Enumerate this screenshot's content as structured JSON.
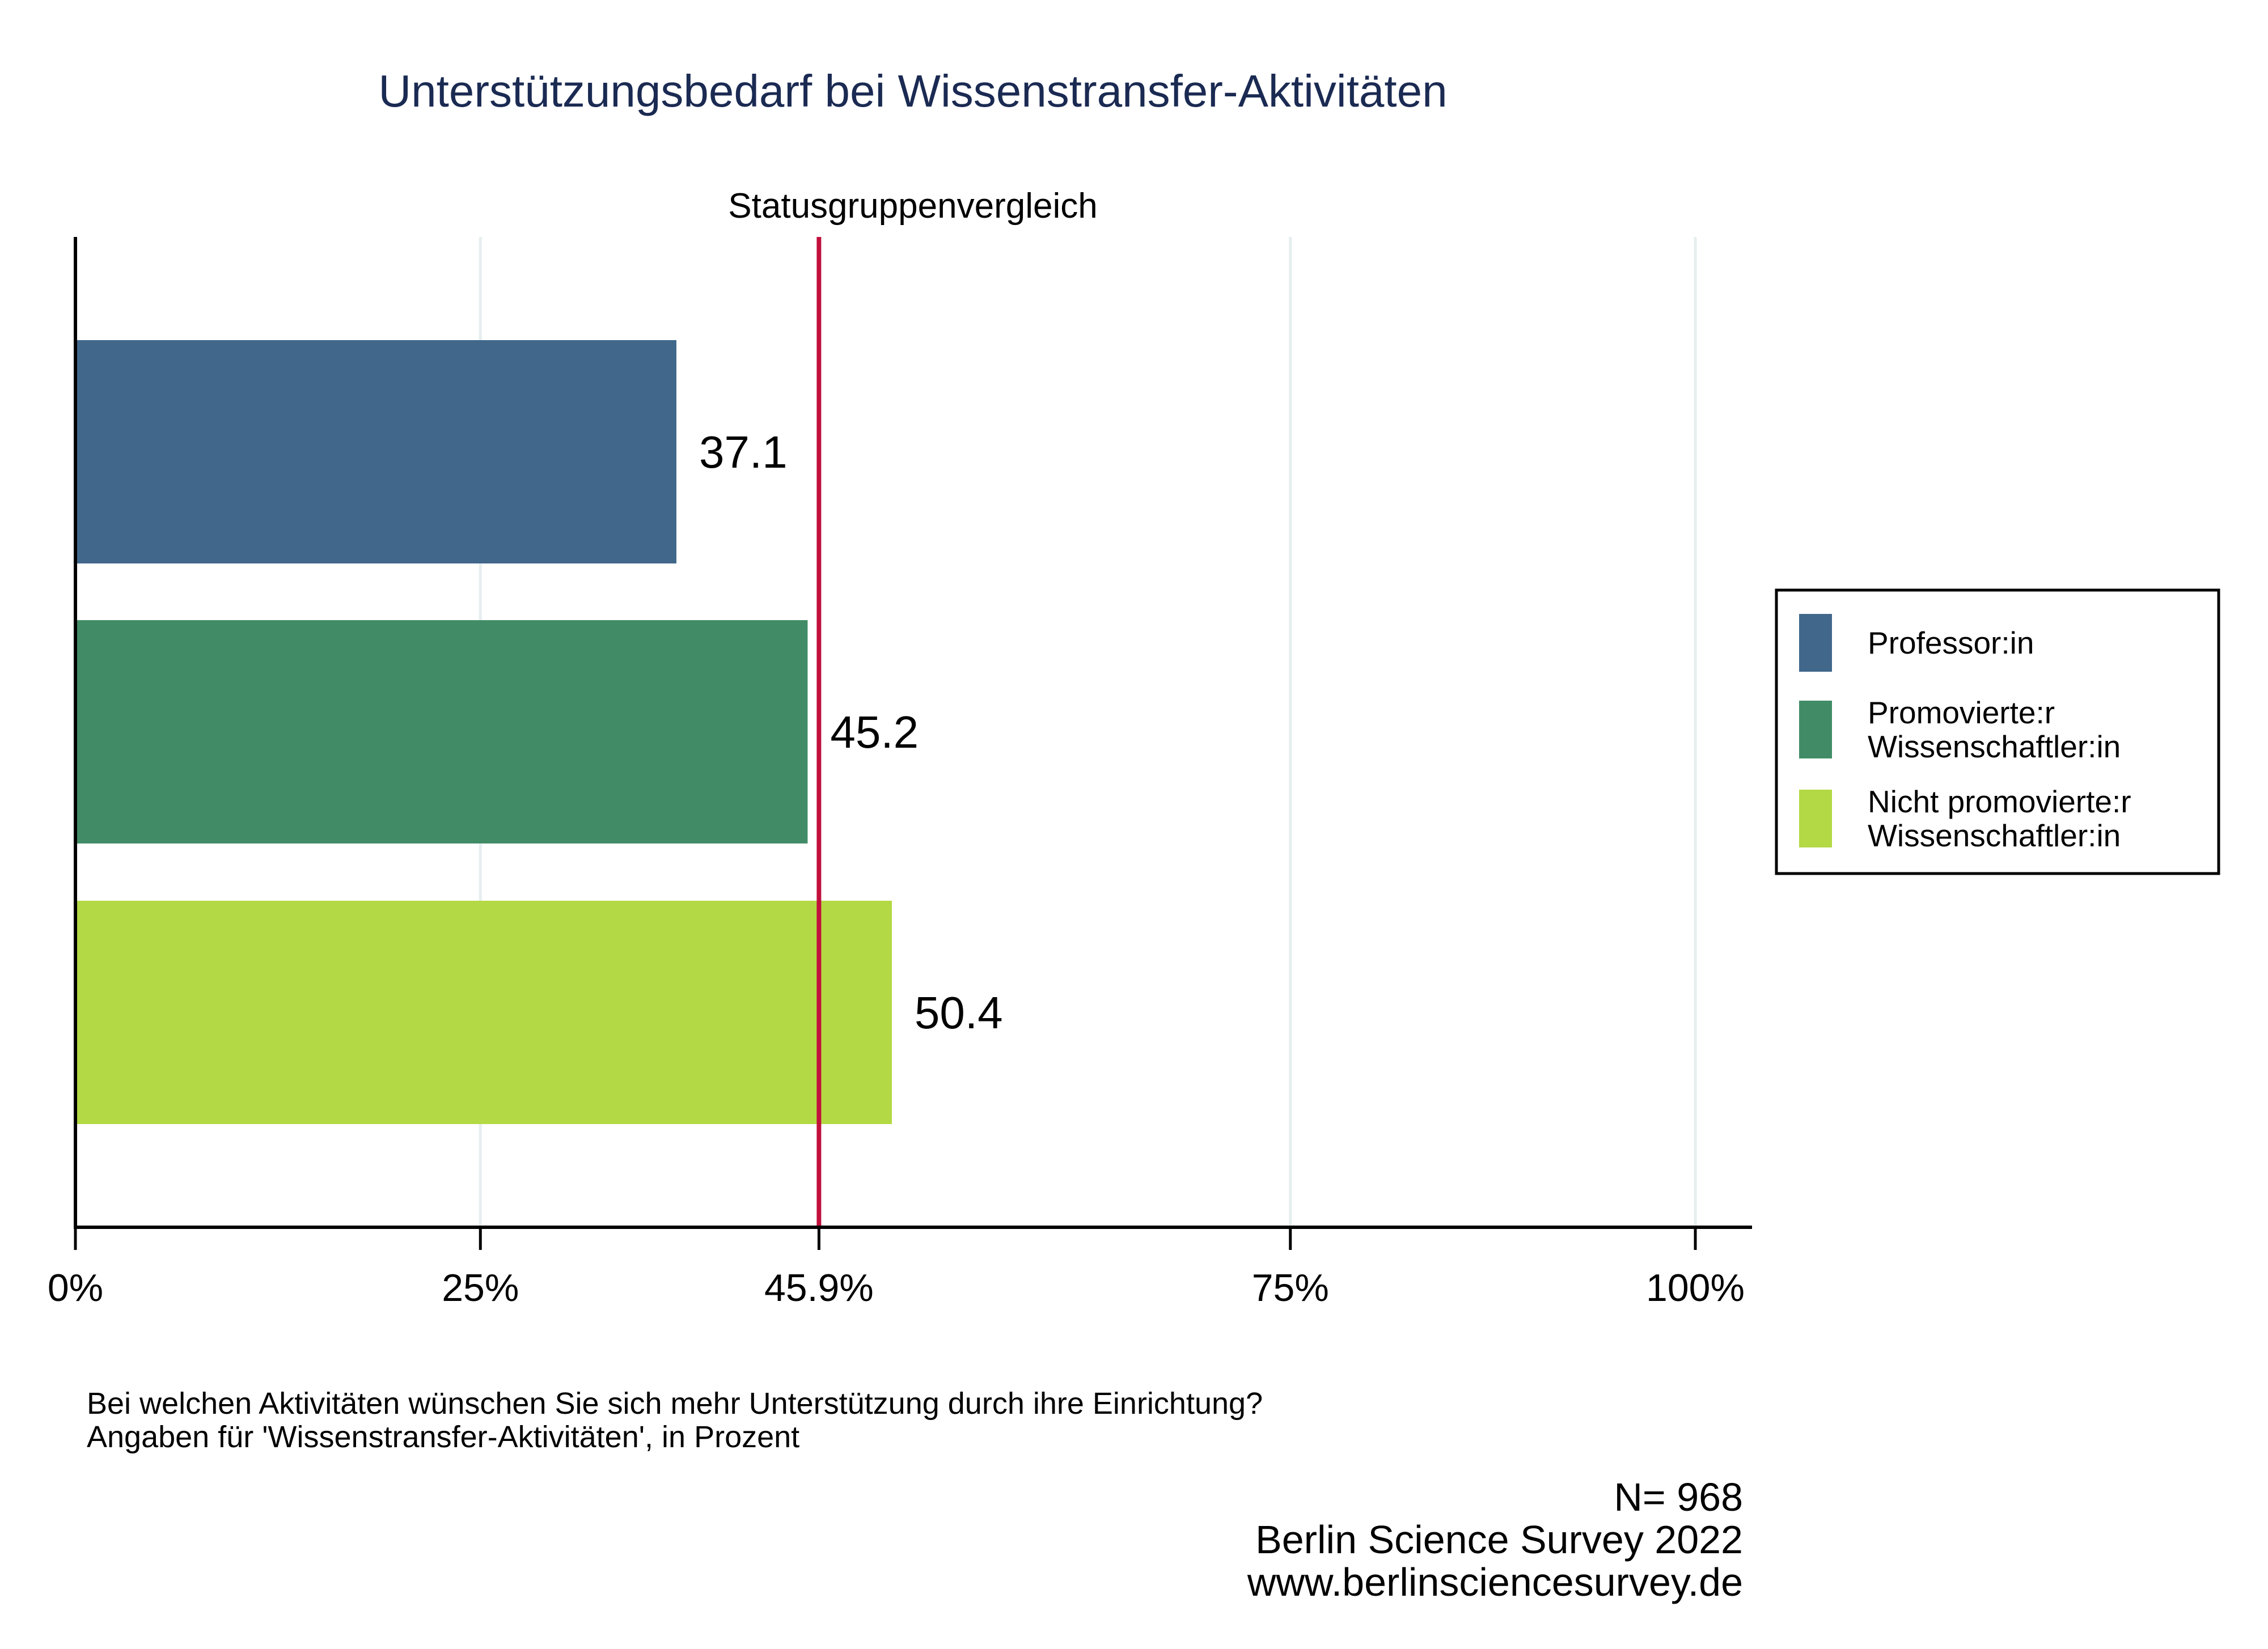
{
  "chart_data": {
    "type": "bar",
    "orientation": "horizontal",
    "title": "Unterstützungsbedarf bei Wissenstransfer-Aktivitäten",
    "subtitle": "Statusgruppenvergleich",
    "categories": [
      [
        "Professor:in"
      ],
      [
        "Promovierte:r",
        "Wissenschaftler:in"
      ],
      [
        "Nicht promovierte:r",
        "Wissenschaftler:in"
      ]
    ],
    "values": [
      37.1,
      45.2,
      50.4
    ],
    "value_labels": [
      "37.1",
      "45.2",
      "50.4"
    ],
    "colors": [
      "#41678b",
      "#418c66",
      "#b3d944"
    ],
    "reference_line": {
      "value": 45.9,
      "label": "45.9%",
      "color": "#c0103c"
    },
    "x_ticks": [
      {
        "value": 0,
        "label": "0%"
      },
      {
        "value": 25,
        "label": "25%"
      },
      {
        "value": 75,
        "label": "75%"
      },
      {
        "value": 100,
        "label": "100%"
      }
    ],
    "xlim": [
      0,
      100
    ],
    "grid": true,
    "legend_position": "right"
  },
  "notes": [
    "Bei welchen Aktivitäten wünschen Sie sich mehr Unterstützung durch ihre Einrichtung?",
    "Angaben für 'Wissenstransfer-Aktivitäten', in Prozent"
  ],
  "source": [
    "N= 968",
    "Berlin Science Survey 2022",
    "www.berlinsciencesurvey.de"
  ]
}
